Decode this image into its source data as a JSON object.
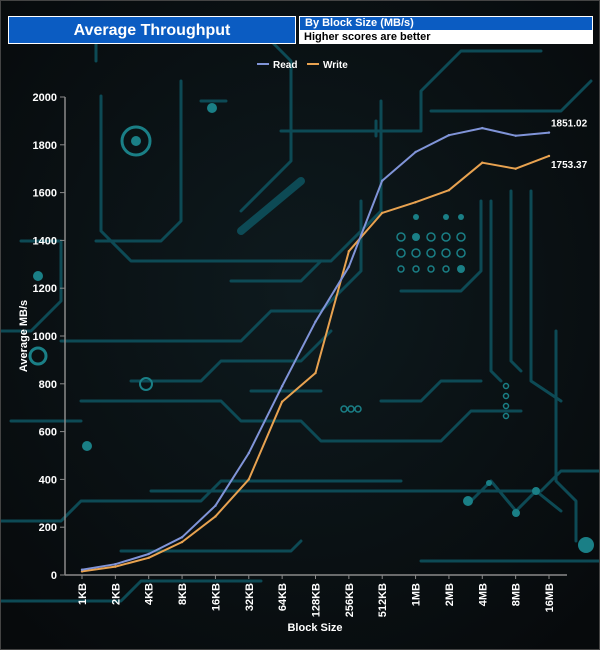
{
  "header": {
    "title": "Average Throughput",
    "subtitle": "By Block Size (MB/s)",
    "note": "Higher scores are better"
  },
  "colors": {
    "read": "#8094d8",
    "write": "#e8a250",
    "circuit": "#0d4a55",
    "circuit_dot": "#1a7f86",
    "background": "#0b0f12"
  },
  "chart_data": {
    "type": "line",
    "categories": [
      "1KB",
      "2KB",
      "4KB",
      "8KB",
      "16KB",
      "32KB",
      "64KB",
      "128KB",
      "256KB",
      "512KB",
      "1MB",
      "2MB",
      "4MB",
      "8MB",
      "16MB"
    ],
    "series": [
      {
        "name": "Read",
        "color": "#8094d8",
        "values": [
          22,
          45,
          88,
          158,
          290,
          510,
          790,
          1060,
          1290,
          1650,
          1770,
          1840,
          1870,
          1838,
          1851.02
        ]
      },
      {
        "name": "Write",
        "color": "#e8a250",
        "values": [
          15,
          35,
          72,
          138,
          245,
          400,
          725,
          845,
          1355,
          1515,
          1560,
          1610,
          1725,
          1700,
          1753.37
        ]
      }
    ],
    "end_labels": [
      "1851.02",
      "1753.37"
    ],
    "xlabel": "Block Size",
    "ylabel": "Average MB/s",
    "ylim": [
      0,
      2000
    ],
    "yticks": [
      0,
      200,
      400,
      600,
      800,
      1000,
      1200,
      1400,
      1600,
      1800,
      2000
    ],
    "legend_position": "top-center",
    "grid": false
  }
}
